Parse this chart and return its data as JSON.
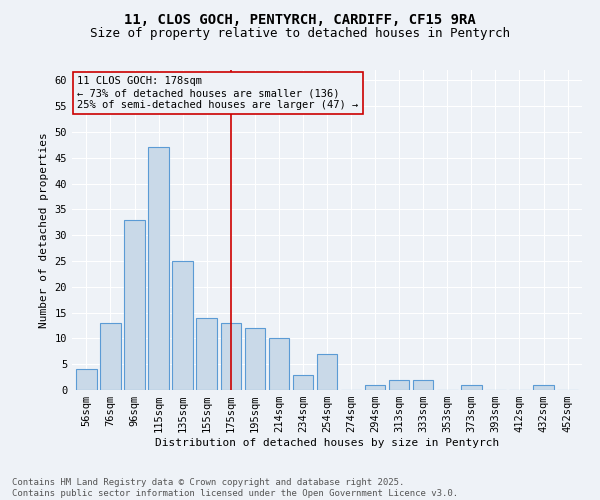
{
  "title_line1": "11, CLOS GOCH, PENTYRCH, CARDIFF, CF15 9RA",
  "title_line2": "Size of property relative to detached houses in Pentyrch",
  "xlabel": "Distribution of detached houses by size in Pentyrch",
  "ylabel": "Number of detached properties",
  "bar_labels": [
    "56sqm",
    "76sqm",
    "96sqm",
    "115sqm",
    "135sqm",
    "155sqm",
    "175sqm",
    "195sqm",
    "214sqm",
    "234sqm",
    "254sqm",
    "274sqm",
    "294sqm",
    "313sqm",
    "333sqm",
    "353sqm",
    "373sqm",
    "393sqm",
    "412sqm",
    "432sqm",
    "452sqm"
  ],
  "bar_values": [
    4,
    13,
    33,
    47,
    25,
    14,
    13,
    12,
    10,
    3,
    7,
    0,
    1,
    2,
    2,
    0,
    1,
    0,
    0,
    1,
    0
  ],
  "bar_color": "#c9d9e8",
  "bar_edge_color": "#5b9bd5",
  "vline_x_index": 6,
  "vline_color": "#cc0000",
  "annotation_text": "11 CLOS GOCH: 178sqm\n← 73% of detached houses are smaller (136)\n25% of semi-detached houses are larger (47) →",
  "annotation_box_color": "#cc0000",
  "ylim": [
    0,
    62
  ],
  "yticks": [
    0,
    5,
    10,
    15,
    20,
    25,
    30,
    35,
    40,
    45,
    50,
    55,
    60
  ],
  "footer_text": "Contains HM Land Registry data © Crown copyright and database right 2025.\nContains public sector information licensed under the Open Government Licence v3.0.",
  "background_color": "#eef2f7",
  "grid_color": "#ffffff",
  "title_fontsize": 10,
  "subtitle_fontsize": 9,
  "axis_label_fontsize": 8,
  "tick_fontsize": 7.5,
  "annotation_fontsize": 7.5,
  "footer_fontsize": 6.5
}
